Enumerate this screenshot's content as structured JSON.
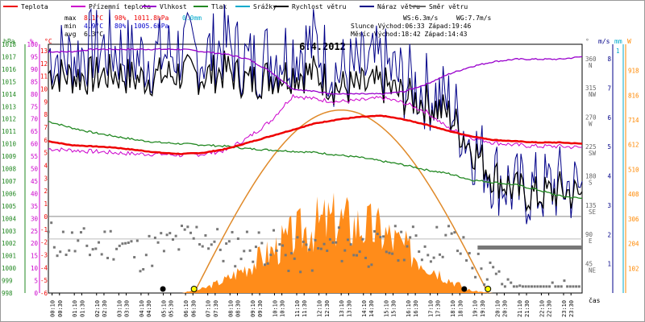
{
  "chart_data": {
    "type": "line",
    "title": "6.4.2012",
    "legend": [
      {
        "label": "Teplota",
        "color": "#ee0000"
      },
      {
        "label": "Přízemní teplota",
        "color": "#cc00cc"
      },
      {
        "label": "Vlhkost",
        "color": "#9900cc"
      },
      {
        "label": "Tlak",
        "color": "#228822"
      },
      {
        "label": "Srážky",
        "color": "#00aacc"
      },
      {
        "label": "Rychlost větru",
        "color": "#000000"
      },
      {
        "label": "Náraz větru",
        "color": "#000088"
      },
      {
        "label": "Směr větru",
        "color": "#666666"
      }
    ],
    "stats": {
      "rows": [
        {
          "label": "max",
          "temp": "8.1°C",
          "hum": "98%",
          "press": "1011.8hPa",
          "rain": "0.0mm"
        },
        {
          "label": "min",
          "temp": "4.9°C",
          "hum": "80%",
          "press": "1005.6hPa",
          "rain": ""
        },
        {
          "label": "avg",
          "temp": "6.3°C",
          "hum": "",
          "press": "",
          "rain": ""
        }
      ],
      "ws": "WS:6.3m/s",
      "wg": "WG:7.7m/s",
      "sun": "Slunce Východ:06:33  Západ:19:46",
      "moon": "Měsíc  Východ:18:42  Západ:14:43"
    },
    "axes": {
      "hpa": {
        "title": "hPa",
        "ticks": [
          "1018",
          "1017",
          "1016",
          "1015",
          "1014",
          "1013",
          "1012",
          "1011",
          "1010",
          "1009",
          "1008",
          "1007",
          "1006",
          "1005",
          "1004",
          "1003",
          "1002",
          "1001",
          "1000",
          "999",
          "998"
        ],
        "range": [
          998,
          1018
        ]
      },
      "pct": {
        "title": "%",
        "ticks": [
          "100",
          "95",
          "90",
          "85",
          "80",
          "75",
          "70",
          "65",
          "60",
          "55",
          "50",
          "45",
          "40",
          "35",
          "30",
          "25",
          "20",
          "15",
          "10",
          "5",
          "0"
        ],
        "range": [
          0,
          100
        ]
      },
      "degc": {
        "title": "°C",
        "ticks": [
          "13",
          "12",
          "11",
          "10",
          "9",
          "8",
          "7",
          "6",
          "5",
          "4",
          "3",
          "2",
          "1",
          "0",
          "-1",
          "-2",
          "-3",
          "-4",
          "-5",
          "-6"
        ],
        "range": [
          -6,
          13.5
        ]
      },
      "deg": {
        "title": "°",
        "ticks": [
          {
            "v": "360",
            "d": "N"
          },
          {
            "v": "315",
            "d": "NW"
          },
          {
            "v": "270",
            "d": "W"
          },
          {
            "v": "225",
            "d": "SW"
          },
          {
            "v": "180",
            "d": "S"
          },
          {
            "v": "135",
            "d": "SE"
          },
          {
            "v": "90",
            "d": "E"
          },
          {
            "v": "45",
            "d": "NE"
          }
        ]
      },
      "ms": {
        "title": "m/s",
        "ticks": [
          "8",
          "7",
          "6",
          "5",
          "4",
          "3",
          "2",
          "1"
        ]
      },
      "mm": {
        "title": "mm",
        "ticks": [
          "1"
        ]
      },
      "wm2": {
        "title": "W",
        "ticks": [
          "918",
          "816",
          "714",
          "612",
          "510",
          "408",
          "306",
          "204",
          "102"
        ],
        "range": [
          0,
          918
        ]
      },
      "time": {
        "title": "čas",
        "ticks": [
          "00:10",
          "00:30",
          "01:10",
          "01:30",
          "02:10",
          "02:30",
          "03:10",
          "03:30",
          "04:10",
          "04:30",
          "05:10",
          "05:30",
          "06:10",
          "06:30",
          "07:10",
          "07:30",
          "08:10",
          "08:30",
          "09:10",
          "09:30",
          "10:10",
          "10:30",
          "11:10",
          "11:30",
          "12:10",
          "12:30",
          "13:10",
          "13:30",
          "14:10",
          "14:30",
          "15:10",
          "15:30",
          "16:10",
          "16:30",
          "17:10",
          "17:30",
          "18:10",
          "18:30",
          "19:10",
          "19:30",
          "20:10",
          "20:30",
          "21:10",
          "21:30",
          "22:10",
          "22:30",
          "23:10",
          "23:30"
        ]
      }
    },
    "hours": [
      0,
      1,
      2,
      3,
      4,
      5,
      6,
      7,
      8,
      9,
      10,
      11,
      12,
      13,
      14,
      15,
      16,
      17,
      18,
      19,
      20,
      21,
      22,
      23,
      24
    ],
    "series": [
      {
        "name": "Teplota",
        "unit": "°C",
        "color": "#ee0000",
        "values": [
          5.9,
          5.6,
          5.5,
          5.4,
          5.2,
          5.0,
          4.9,
          5.0,
          5.3,
          5.8,
          6.3,
          6.8,
          7.3,
          7.6,
          7.8,
          7.9,
          7.6,
          7.2,
          6.7,
          6.3,
          6.0,
          5.9,
          5.8,
          5.8,
          5.7
        ]
      },
      {
        "name": "Přízemní teplota",
        "unit": "°C",
        "color": "#cc00cc",
        "values": [
          5.3,
          5.2,
          5.1,
          5.0,
          4.9,
          4.9,
          4.8,
          4.9,
          5.2,
          6.2,
          7.5,
          9.5,
          9.2,
          9.0,
          9.1,
          9.3,
          8.9,
          8.2,
          6.9,
          6.2,
          5.8,
          5.6,
          5.5,
          5.5,
          5.4
        ]
      },
      {
        "name": "Vlhkost",
        "unit": "%",
        "color": "#9900cc",
        "values": [
          97,
          97,
          98,
          98,
          98,
          98,
          98,
          97,
          96,
          94,
          89,
          82,
          81,
          80,
          80,
          80,
          81,
          84,
          88,
          91,
          93,
          94,
          94,
          94,
          95
        ]
      },
      {
        "name": "Tlak",
        "unit": "hPa",
        "color": "#228822",
        "values": [
          1011.8,
          1011.3,
          1010.9,
          1010.6,
          1010.3,
          1010.1,
          1010.0,
          1009.9,
          1009.8,
          1009.6,
          1009.5,
          1009.4,
          1009.3,
          1009.1,
          1008.9,
          1008.6,
          1008.3,
          1007.9,
          1007.6,
          1007.1,
          1006.9,
          1006.7,
          1006.3,
          1005.8,
          1005.6
        ]
      },
      {
        "name": "Srážky",
        "unit": "mm",
        "color": "#00aacc",
        "values": [
          0,
          0,
          0,
          0,
          0,
          0,
          0,
          0,
          0,
          0,
          0,
          0,
          0,
          0,
          0,
          0,
          0,
          0,
          0,
          0,
          0,
          0,
          0,
          0,
          0
        ]
      },
      {
        "name": "Rychlost větru",
        "unit": "m/s",
        "color": "#000000",
        "values": [
          6.0,
          5.9,
          5.9,
          6.0,
          5.8,
          5.9,
          6.0,
          5.9,
          6.1,
          5.7,
          5.9,
          6.0,
          6.0,
          5.5,
          5.5,
          5.6,
          5.2,
          5.0,
          4.6,
          3.5,
          2.5,
          2.0,
          1.8,
          2.0,
          1.8
        ]
      },
      {
        "name": "Náraz větru",
        "unit": "m/s",
        "color": "#000088",
        "values": [
          6.7,
          6.5,
          6.9,
          6.8,
          6.5,
          6.6,
          6.8,
          6.6,
          7.0,
          6.3,
          6.6,
          6.8,
          7.0,
          6.0,
          6.1,
          6.3,
          5.7,
          5.4,
          5.0,
          3.6,
          2.6,
          2.0,
          2.0,
          2.2,
          2.0
        ]
      },
      {
        "name": "Sluneční záření",
        "unit": "W",
        "color": "#ff8800",
        "values": [
          0,
          0,
          0,
          0,
          0,
          0,
          0,
          20,
          60,
          120,
          180,
          250,
          300,
          320,
          300,
          270,
          200,
          130,
          60,
          10,
          0,
          0,
          0,
          0,
          0
        ]
      }
    ],
    "sun_curve": {
      "hours": [
        6.55,
        14.2,
        19.77
      ],
      "values": [
        0,
        755,
        0
      ]
    },
    "wind_direction_deg": [
      345,
      335,
      330,
      340,
      320,
      330,
      340,
      350,
      325,
      335,
      330,
      315,
      320,
      335,
      330,
      325,
      340,
      330,
      345,
      310,
      280,
      260,
      240,
      255,
      250
    ],
    "markers": {
      "sunrise": "06:33",
      "sunset": "19:46",
      "moonrise": "18:42",
      "moonset": "14:43"
    }
  }
}
